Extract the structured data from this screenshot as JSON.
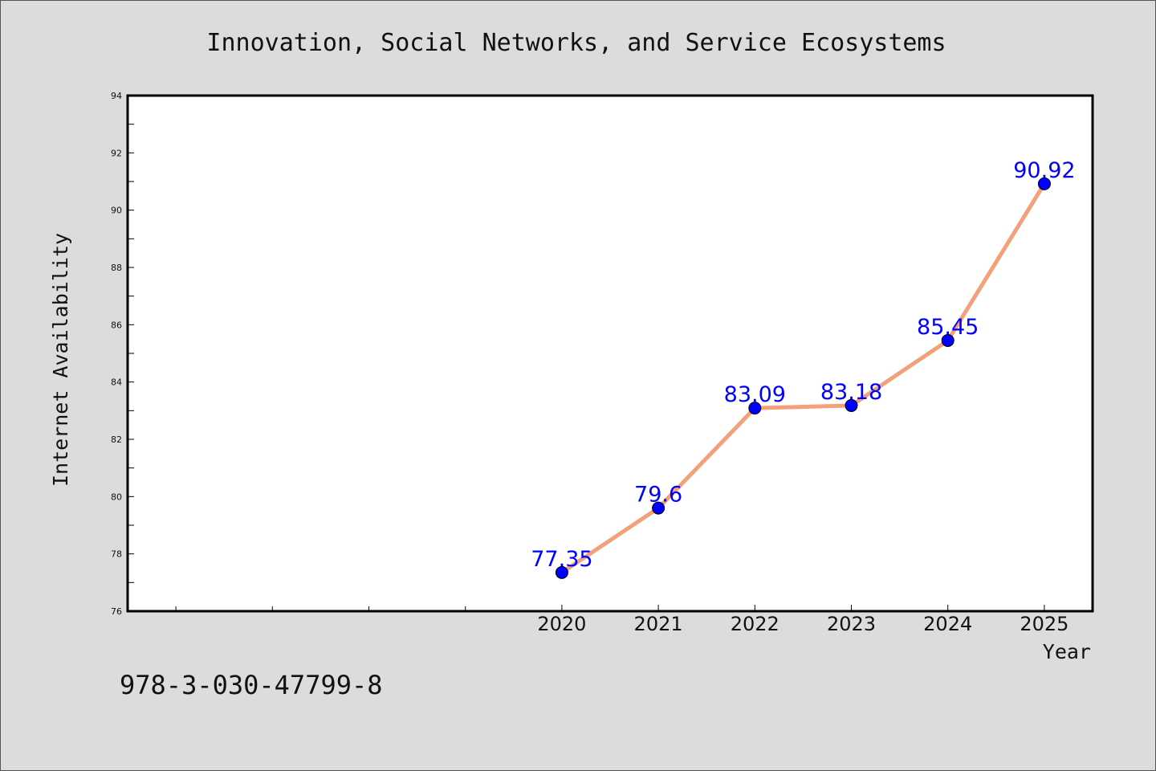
{
  "chart_data": {
    "type": "line",
    "title": "Innovation, Social Networks, and Service Ecosystems",
    "xlabel": "Year",
    "ylabel": "Internet Availability",
    "x": [
      2020,
      2021,
      2022,
      2023,
      2024,
      2025
    ],
    "xlim": [
      2015.5,
      2025.5
    ],
    "ylim": [
      76,
      94
    ],
    "y_major_ticks": [
      76,
      78,
      80,
      82,
      84,
      86,
      88,
      90,
      92,
      94
    ],
    "y_minor_step": 1,
    "x_minor_ticks": [
      2016,
      2017,
      2018,
      2019
    ],
    "grid": false,
    "legend": "none",
    "series": [
      {
        "values": [
          77.35,
          79.6,
          83.09,
          83.18,
          85.45,
          90.92
        ],
        "labels": [
          "77.35",
          "79.6",
          "83.09",
          "83.18",
          "85.45",
          "90.92"
        ],
        "line_color": "#f4a07a",
        "marker_color": "#0000ff",
        "label_color": "#0000ff"
      }
    ]
  },
  "footer": {
    "isbn": "978-3-030-47799-8"
  }
}
